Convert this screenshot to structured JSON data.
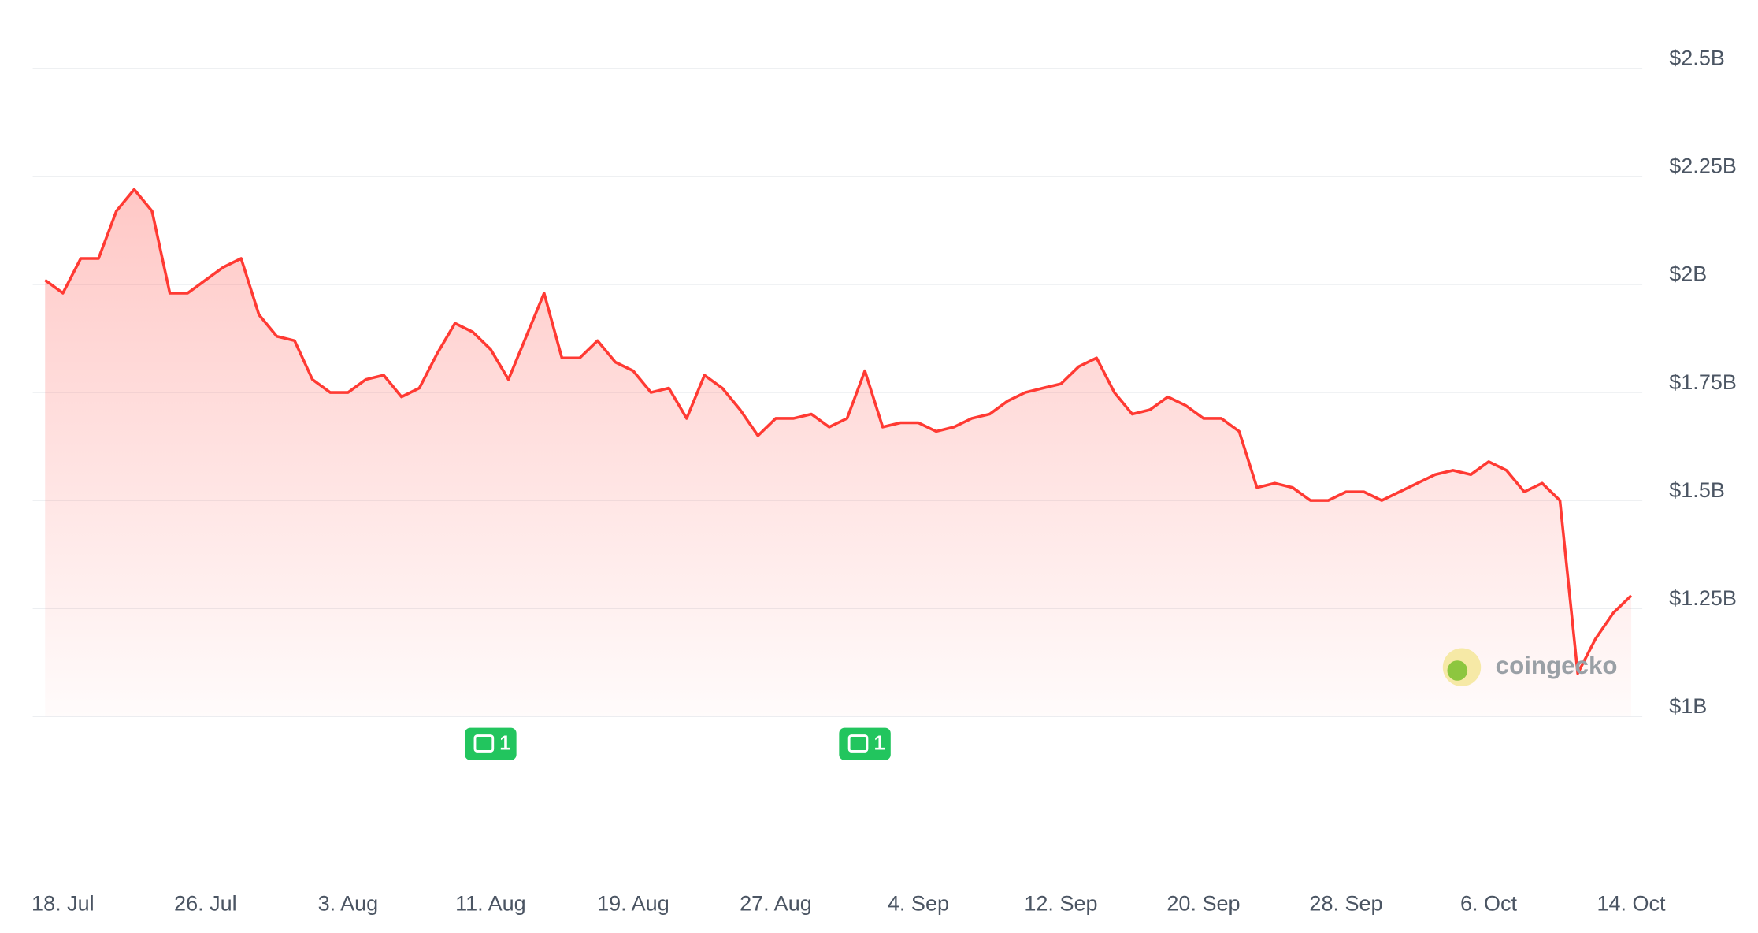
{
  "chart_data": {
    "type": "line",
    "x": [
      "17. Jul",
      "18. Jul",
      "19. Jul",
      "20. Jul",
      "21. Jul",
      "22. Jul",
      "23. Jul",
      "24. Jul",
      "25. Jul",
      "26. Jul",
      "27. Jul",
      "28. Jul",
      "29. Jul",
      "30. Jul",
      "31. Jul",
      "1. Aug",
      "2. Aug",
      "3. Aug",
      "4. Aug",
      "5. Aug",
      "6. Aug",
      "7. Aug",
      "8. Aug",
      "9. Aug",
      "10. Aug",
      "11. Aug",
      "12. Aug",
      "13. Aug",
      "14. Aug",
      "15. Aug",
      "16. Aug",
      "17. Aug",
      "18. Aug",
      "19. Aug",
      "20. Aug",
      "21. Aug",
      "22. Aug",
      "23. Aug",
      "24. Aug",
      "25. Aug",
      "26. Aug",
      "27. Aug",
      "28. Aug",
      "29. Aug",
      "30. Aug",
      "31. Aug",
      "1. Sep",
      "2. Sep",
      "3. Sep",
      "4. Sep",
      "5. Sep",
      "6. Sep",
      "7. Sep",
      "8. Sep",
      "9. Sep",
      "10. Sep",
      "11. Sep",
      "12. Sep",
      "13. Sep",
      "14. Sep",
      "15. Sep",
      "16. Sep",
      "17. Sep",
      "18. Sep",
      "19. Sep",
      "20. Sep",
      "21. Sep",
      "22. Sep",
      "23. Sep",
      "24. Sep",
      "25. Sep",
      "26. Sep",
      "27. Sep",
      "28. Sep",
      "29. Sep",
      "30. Sep",
      "1. Oct",
      "2. Oct",
      "3. Oct",
      "4. Oct",
      "5. Oct",
      "6. Oct",
      "7. Oct",
      "8. Oct",
      "9. Oct",
      "10. Oct",
      "11. Oct",
      "12. Oct",
      "13. Oct",
      "14. Oct"
    ],
    "series": [
      {
        "color": "#ff3a33",
        "values": [
          2.01,
          1.98,
          2.06,
          2.06,
          2.17,
          2.22,
          2.17,
          1.98,
          1.98,
          2.01,
          2.04,
          2.06,
          1.93,
          1.88,
          1.87,
          1.78,
          1.75,
          1.75,
          1.78,
          1.79,
          1.74,
          1.76,
          1.84,
          1.91,
          1.89,
          1.85,
          1.78,
          1.88,
          1.98,
          1.83,
          1.83,
          1.87,
          1.82,
          1.8,
          1.75,
          1.76,
          1.69,
          1.79,
          1.76,
          1.71,
          1.65,
          1.69,
          1.69,
          1.7,
          1.67,
          1.69,
          1.8,
          1.67,
          1.68,
          1.68,
          1.66,
          1.67,
          1.69,
          1.7,
          1.73,
          1.75,
          1.76,
          1.77,
          1.81,
          1.83,
          1.75,
          1.7,
          1.71,
          1.74,
          1.72,
          1.69,
          1.69,
          1.66,
          1.53,
          1.54,
          1.53,
          1.5,
          1.5,
          1.52,
          1.52,
          1.5,
          1.52,
          1.54,
          1.56,
          1.57,
          1.56,
          1.59,
          1.57,
          1.52,
          1.54,
          1.5,
          1.1,
          1.18,
          1.24,
          1.28
        ]
      }
    ],
    "ylim": [
      1,
      2.5
    ],
    "yticks": [
      {
        "value": 1,
        "label": "$1B"
      },
      {
        "value": 1.25,
        "label": "$1.25B"
      },
      {
        "value": 1.5,
        "label": "$1.5B"
      },
      {
        "value": 1.75,
        "label": "$1.75B"
      },
      {
        "value": 2,
        "label": "$2B"
      },
      {
        "value": 2.25,
        "label": "$2.25B"
      },
      {
        "value": 2.5,
        "label": "$2.5B"
      }
    ],
    "xticks": [
      "18. Jul",
      "26. Jul",
      "3. Aug",
      "11. Aug",
      "19. Aug",
      "27. Aug",
      "4. Sep",
      "12. Sep",
      "20. Sep",
      "28. Sep",
      "6. Oct",
      "14. Oct"
    ],
    "grid": true,
    "annotations": [
      {
        "x": "11. Aug",
        "label": "1"
      },
      {
        "x": "1. Sep",
        "label": "1"
      }
    ],
    "watermark": "coingecko"
  }
}
